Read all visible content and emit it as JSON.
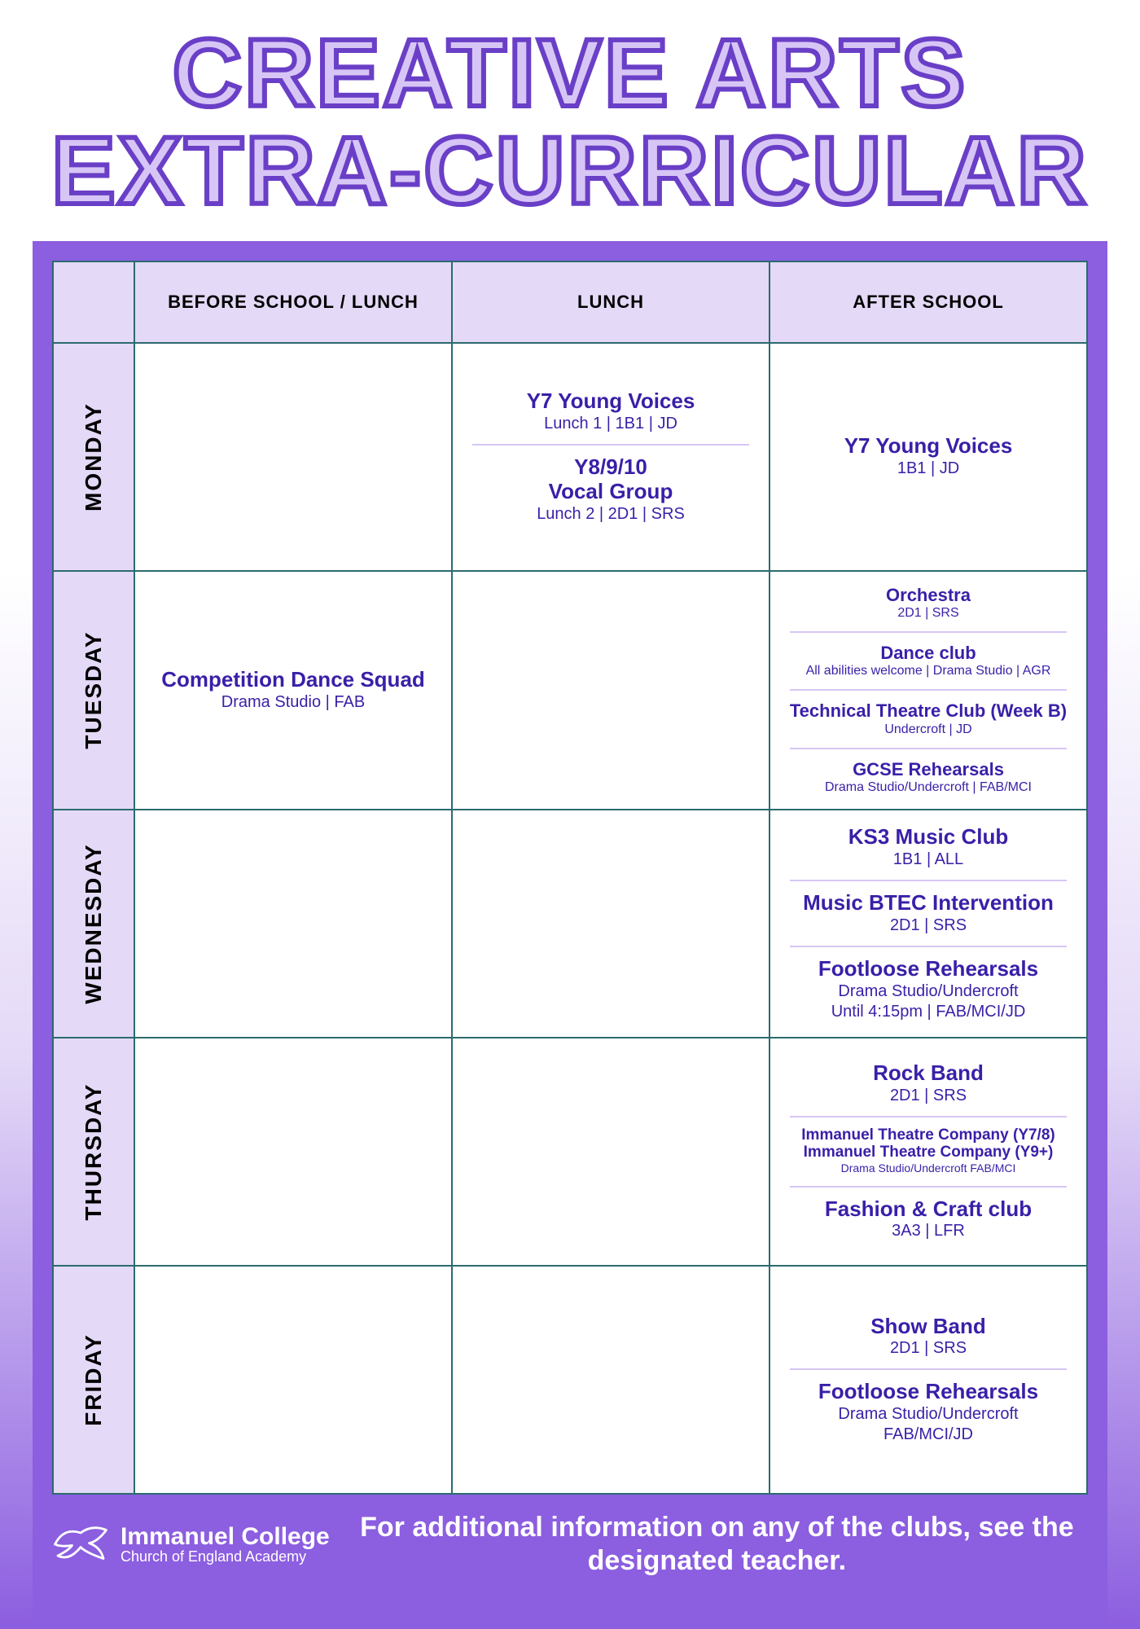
{
  "title_line1": "CREATIVE ARTS",
  "title_line2": "EXTRA-CURRICULAR",
  "columns": [
    "",
    "Before School / Lunch",
    "Lunch",
    "After School"
  ],
  "days": [
    "Monday",
    "Tuesday",
    "Wednesday",
    "Thursday",
    "Friday"
  ],
  "schedule": {
    "monday": {
      "before": [],
      "lunch": [
        {
          "title": "Y7 Young Voices",
          "sub": "Lunch 1 | 1B1 | JD"
        },
        {
          "title": "Y8/9/10\nVocal Group",
          "sub": "Lunch 2 | 2D1 | SRS"
        }
      ],
      "after": [
        {
          "title": "Y7 Young Voices",
          "sub": "1B1 | JD"
        }
      ]
    },
    "tuesday": {
      "before": [
        {
          "title": "Competition Dance Squad",
          "sub": "Drama Studio | FAB"
        }
      ],
      "lunch": [],
      "after": [
        {
          "title": "Orchestra",
          "sub": "2D1 | SRS",
          "size": "sm"
        },
        {
          "title": "Dance club",
          "sub": "All abilities welcome | Drama Studio | AGR",
          "size": "sm"
        },
        {
          "title": "Technical Theatre Club (Week B)",
          "sub": "Undercroft | JD",
          "size": "sm"
        },
        {
          "title": "GCSE Rehearsals",
          "sub": "Drama Studio/Undercroft | FAB/MCI",
          "size": "sm"
        }
      ]
    },
    "wednesday": {
      "before": [],
      "lunch": [],
      "after": [
        {
          "title": "KS3 Music Club",
          "sub": "1B1 | ALL"
        },
        {
          "title": "Music BTEC Intervention",
          "sub": "2D1 | SRS"
        },
        {
          "title": "Footloose Rehearsals",
          "sub": "Drama Studio/Undercroft\nUntil 4:15pm | FAB/MCI/JD"
        }
      ]
    },
    "thursday": {
      "before": [],
      "lunch": [],
      "after": [
        {
          "title": "Rock Band",
          "sub": "2D1 | SRS"
        },
        {
          "title": "Immanuel Theatre Company (Y7/8)\nImmanuel Theatre Company (Y9+)",
          "sub": "Drama Studio/Undercroft FAB/MCI",
          "size": "xs"
        },
        {
          "title": "Fashion & Craft club",
          "sub": "3A3 | LFR"
        }
      ]
    },
    "friday": {
      "before": [],
      "lunch": [],
      "after": [
        {
          "title": "Show Band",
          "sub": "2D1 | SRS"
        },
        {
          "title": "Footloose Rehearsals",
          "sub": "Drama Studio/Undercroft\nFAB/MCI/JD"
        }
      ]
    }
  },
  "footer": {
    "org_line1": "Immanuel College",
    "org_line2": "Church of England Academy",
    "message": "For additional information on any of the clubs, see the designated teacher."
  },
  "style": {
    "title_fill": "#d7c6f5",
    "title_stroke": "#6a3fc7",
    "board_bg": "#8c5ee0",
    "header_bg": "#e4d9f7",
    "cell_border": "#2b6b6e",
    "entry_color": "#3a1fa8",
    "sep_color": "#d7c6f5",
    "gradient_bottom": "#8c5ee0"
  }
}
